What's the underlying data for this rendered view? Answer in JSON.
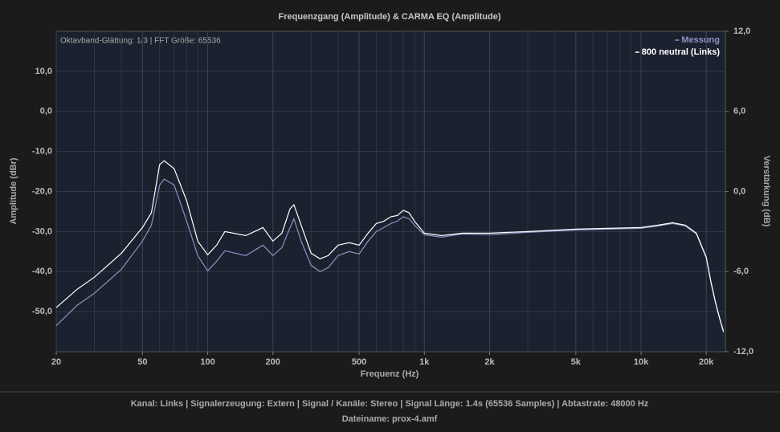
{
  "chart_data": {
    "type": "line",
    "title": "Frequenzgang (Amplitude) & CARMA EQ (Amplitude)",
    "annotation": "Oktavband-Glättung: 1/3 | FFT Größe: 65536",
    "xlabel": "Frequenz (Hz)",
    "ylabel": "Amplitude (dBr)",
    "y2label": "Verstärkung (dB)",
    "xscale": "log",
    "grid": true,
    "legend": "upper right",
    "xlim": [
      20,
      24500
    ],
    "ylim": [
      -60,
      20
    ],
    "y2lim": [
      -12,
      12
    ],
    "xticks": [
      20,
      50,
      100,
      200,
      500,
      {
        "value": 1000,
        "label": "1k"
      },
      {
        "value": 2000,
        "label": "2k"
      },
      {
        "value": 5000,
        "label": "5k"
      },
      {
        "value": 10000,
        "label": "10k"
      },
      {
        "value": 20000,
        "label": "20k"
      }
    ],
    "yticks": [
      {
        "value": -50,
        "label": "-50,0"
      },
      {
        "value": -40,
        "label": "-40,0"
      },
      {
        "value": -30,
        "label": "-30,0"
      },
      {
        "value": -20,
        "label": "-20,0"
      },
      {
        "value": -10,
        "label": "-10,0"
      },
      {
        "value": 0,
        "label": "0,0"
      },
      {
        "value": 10,
        "label": "10,0"
      }
    ],
    "y2ticks": [
      {
        "value": -12,
        "label": "-12,0"
      },
      {
        "value": -6,
        "label": "-6,0"
      },
      {
        "value": 0,
        "label": "0,0"
      },
      {
        "value": 6,
        "label": "6,0"
      },
      {
        "value": 12,
        "label": "12,0"
      }
    ],
    "x": [
      20,
      25,
      30,
      40,
      50,
      55,
      60,
      63,
      70,
      80,
      90,
      100,
      110,
      120,
      150,
      180,
      200,
      220,
      240,
      250,
      270,
      300,
      330,
      360,
      400,
      450,
      500,
      550,
      600,
      650,
      700,
      750,
      800,
      850,
      900,
      1000,
      1200,
      1500,
      2000,
      3000,
      5000,
      7000,
      10000,
      12000,
      14000,
      16000,
      18000,
      20000,
      21000,
      22000,
      23000,
      24000
    ],
    "series": [
      {
        "name": "Messung",
        "color": "#8a93c4",
        "values": [
          -53.5,
          -48.4,
          -45.4,
          -39.4,
          -32.4,
          -28.4,
          -18.4,
          -16.9,
          -18.4,
          -27.4,
          -36,
          -39.8,
          -37.4,
          -34.8,
          -36,
          -33.4,
          -36,
          -34,
          -29,
          -26.8,
          -32.4,
          -38.4,
          -40,
          -39,
          -36,
          -35,
          -35.6,
          -32.4,
          -30,
          -29,
          -28,
          -27.4,
          -26.3,
          -26.8,
          -28.4,
          -30.8,
          -31.4,
          -30.6,
          -30.8,
          -30.2,
          -29.6,
          -29.4,
          -29.2,
          -28.6,
          -28,
          -28.6,
          -30.6,
          -36.6,
          -42.6,
          -47.6,
          -51.6,
          -55.2
        ]
      },
      {
        "name": "800 neutral (Links)",
        "color": "#ffffff",
        "values": [
          -49,
          -44.4,
          -41.4,
          -35.4,
          -29,
          -25.3,
          -13.3,
          -12.3,
          -14.3,
          -22.3,
          -32.4,
          -35.8,
          -33.4,
          -30,
          -31,
          -29,
          -32.4,
          -30.4,
          -24.3,
          -23.3,
          -28.4,
          -35.4,
          -36.8,
          -36,
          -33.4,
          -32.8,
          -33.4,
          -30.4,
          -28,
          -27.4,
          -26.3,
          -26,
          -24.7,
          -25.3,
          -27.4,
          -30.4,
          -31,
          -30.4,
          -30.4,
          -30,
          -29.4,
          -29.2,
          -29,
          -28.4,
          -27.8,
          -28.4,
          -30.4,
          -36.4,
          -42.4,
          -47.4,
          -51.4,
          -54.9
        ]
      }
    ]
  },
  "footer": [
    "Kanal: Links  |  Signalerzeugung: Extern   |  Signal / Kanäle: Stereo  |  Signal Länge: 1.4s (65536 Samples)  |  Abtastrate: 48000 Hz",
    "Dateiname: prox-4.amf"
  ]
}
